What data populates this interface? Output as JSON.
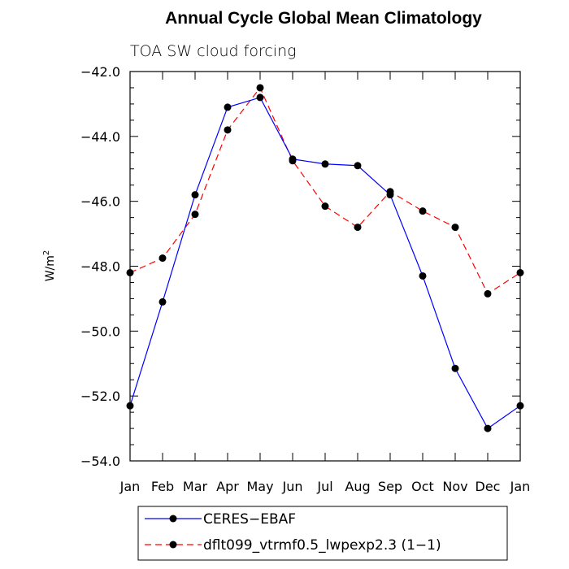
{
  "chart_data": {
    "type": "line",
    "title": "Annual Cycle Global Mean Climatology",
    "subtitle": "TOA SW cloud forcing",
    "ylabel": "W/m",
    "ylabel_sup": "2",
    "xlabel": "",
    "categories": [
      "Jan",
      "Feb",
      "Mar",
      "Apr",
      "May",
      "Jun",
      "Jul",
      "Aug",
      "Sep",
      "Oct",
      "Nov",
      "Dec",
      "Jan"
    ],
    "ylim": [
      -54,
      -42
    ],
    "yticks": [
      -42,
      -44,
      -46,
      -48,
      -50,
      -52,
      -54
    ],
    "ytick_labels": [
      "−42.0",
      "−44.0",
      "−46.0",
      "−48.0",
      "−50.0",
      "−52.0",
      "−54.0"
    ],
    "series": [
      {
        "name": "CERES−EBAF",
        "color": "#0000ff",
        "dash": "solid",
        "values": [
          -52.3,
          -49.1,
          -45.8,
          -43.1,
          -42.8,
          -44.7,
          -44.85,
          -44.9,
          -45.8,
          -48.3,
          -51.15,
          -53.0,
          -52.3
        ]
      },
      {
        "name": "dflt099_vtrmf0.5_lwpexp2.3 (1−1)",
        "color": "#ff0000",
        "dash": "dashed",
        "values": [
          -48.2,
          -47.75,
          -46.4,
          -43.8,
          -42.5,
          -44.75,
          -46.15,
          -46.8,
          -45.7,
          -46.3,
          -46.8,
          -48.85,
          -48.2
        ]
      }
    ]
  }
}
